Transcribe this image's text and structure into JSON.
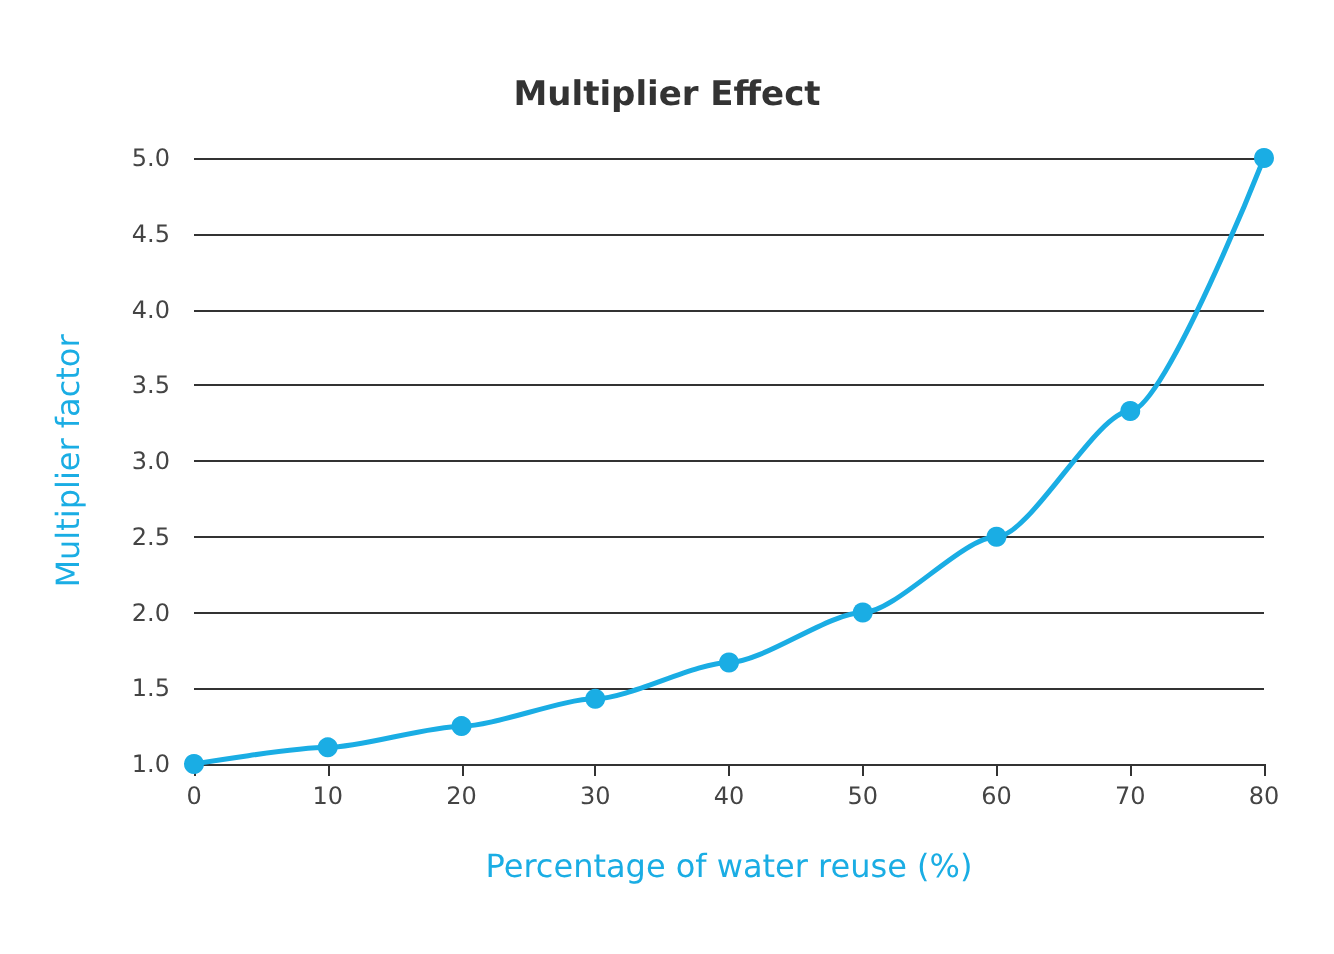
{
  "chart_data": {
    "type": "line",
    "title": "Multiplier Effect",
    "xlabel": "Percentage of water reuse (%)",
    "ylabel": "Multiplier factor",
    "x": [
      0,
      10,
      20,
      30,
      40,
      50,
      60,
      70,
      80
    ],
    "series": [
      {
        "color": "#1aade4",
        "values": [
          1.0,
          1.11,
          1.25,
          1.43,
          1.67,
          2.0,
          2.5,
          3.33,
          5.0
        ]
      }
    ],
    "xlim": [
      0,
      80
    ],
    "xticks": [
      0,
      10,
      20,
      30,
      40,
      50,
      60,
      70,
      80
    ],
    "ylim": [
      1,
      5
    ],
    "yticks": [
      {
        "value": 1,
        "label": "1.0"
      },
      {
        "value": 1.5,
        "label": "1.5"
      },
      {
        "value": 2,
        "label": "2.0"
      },
      {
        "value": 2.5,
        "label": "2.5"
      },
      {
        "value": 3,
        "label": "3.0"
      },
      {
        "value": 3.5,
        "label": "3.5"
      },
      {
        "value": 4,
        "label": "4.0"
      },
      {
        "value": 4.5,
        "label": "4.5"
      },
      {
        "value": 5,
        "label": "5.0"
      }
    ],
    "grid": "y",
    "marker": "circle",
    "line_style": "solid"
  }
}
